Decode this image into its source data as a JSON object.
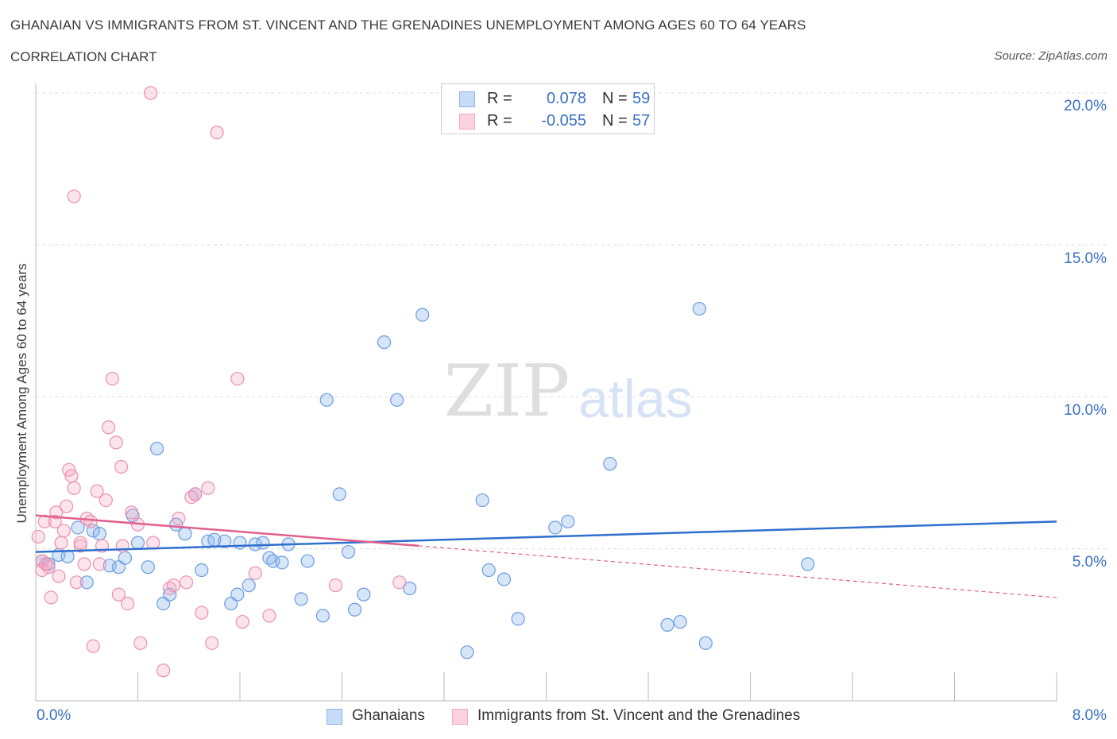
{
  "header": {
    "title": "GHANAIAN VS IMMIGRANTS FROM ST. VINCENT AND THE GRENADINES UNEMPLOYMENT AMONG AGES 60 TO 64 YEARS",
    "subtitle": "CORRELATION CHART",
    "source": "Source: ZipAtlas.com"
  },
  "stats_legend": {
    "rows": [
      {
        "r_label": "R =",
        "r_value": "0.078",
        "n_label": "N =",
        "n_value": "59",
        "color": "#8ab4ea"
      },
      {
        "r_label": "R =",
        "r_value": "-0.055",
        "n_label": "N =",
        "n_value": "57",
        "color": "#f4a6c0"
      }
    ]
  },
  "watermark": {
    "zip": "ZIP",
    "atlas": "atlas"
  },
  "chart_data": {
    "type": "scatter",
    "title": "GHANAIAN VS IMMIGRANTS FROM ST. VINCENT AND THE GRENADINES UNEMPLOYMENT AMONG AGES 60 TO 64 YEARS",
    "subtitle": "CORRELATION CHART",
    "xlabel": "",
    "ylabel": "Unemployment Among Ages 60 to 64 years",
    "xlim": [
      0,
      8
    ],
    "ylim": [
      0,
      20
    ],
    "x_tick_labels": [
      "0.0%",
      "8.0%"
    ],
    "y_tick_labels": [
      "5.0%",
      "10.0%",
      "15.0%",
      "20.0%"
    ],
    "y_ticks": [
      5,
      10,
      15,
      20
    ],
    "grid": true,
    "legend_position": "bottom-center",
    "series": [
      {
        "name": "Ghanaians",
        "color": "#8ab4ea",
        "line_color": "#2f6fce",
        "trend": {
          "x": [
            0,
            8
          ],
          "y": [
            4.9,
            5.9
          ],
          "dashed_after": null
        },
        "points": [
          [
            0.05,
            4.6
          ],
          [
            0.1,
            4.5
          ],
          [
            0.18,
            4.8
          ],
          [
            0.25,
            4.75
          ],
          [
            0.33,
            5.7
          ],
          [
            0.4,
            3.9
          ],
          [
            0.45,
            5.6
          ],
          [
            0.5,
            5.5
          ],
          [
            0.58,
            4.45
          ],
          [
            0.65,
            4.4
          ],
          [
            0.7,
            4.7
          ],
          [
            0.76,
            6.1
          ],
          [
            0.8,
            5.2
          ],
          [
            0.88,
            4.4
          ],
          [
            0.95,
            8.3
          ],
          [
            1.0,
            3.2
          ],
          [
            1.05,
            3.5
          ],
          [
            1.1,
            5.8
          ],
          [
            1.17,
            5.5
          ],
          [
            1.25,
            6.8
          ],
          [
            1.3,
            4.3
          ],
          [
            1.35,
            5.25
          ],
          [
            1.4,
            5.3
          ],
          [
            1.48,
            5.25
          ],
          [
            1.53,
            3.2
          ],
          [
            1.58,
            3.5
          ],
          [
            1.6,
            5.2
          ],
          [
            1.67,
            3.8
          ],
          [
            1.72,
            5.15
          ],
          [
            1.78,
            5.2
          ],
          [
            1.83,
            4.7
          ],
          [
            1.86,
            4.6
          ],
          [
            1.93,
            4.55
          ],
          [
            1.98,
            5.15
          ],
          [
            2.08,
            3.35
          ],
          [
            2.13,
            4.6
          ],
          [
            2.25,
            2.8
          ],
          [
            2.28,
            9.9
          ],
          [
            2.38,
            6.8
          ],
          [
            2.45,
            4.9
          ],
          [
            2.5,
            3.0
          ],
          [
            2.57,
            3.5
          ],
          [
            2.73,
            11.8
          ],
          [
            2.83,
            9.9
          ],
          [
            2.93,
            3.7
          ],
          [
            3.03,
            12.7
          ],
          [
            3.38,
            1.6
          ],
          [
            3.5,
            6.6
          ],
          [
            3.55,
            4.3
          ],
          [
            3.67,
            4.0
          ],
          [
            3.78,
            2.7
          ],
          [
            4.07,
            5.7
          ],
          [
            4.17,
            5.9
          ],
          [
            4.5,
            7.8
          ],
          [
            4.95,
            2.5
          ],
          [
            5.05,
            2.6
          ],
          [
            5.2,
            12.9
          ],
          [
            5.25,
            1.9
          ],
          [
            6.05,
            4.5
          ]
        ]
      },
      {
        "name": "Immigrants from St. Vincent and the Grenadines",
        "color": "#f4a6c0",
        "line_color": "#e0608c",
        "trend": {
          "x": [
            0,
            3.0,
            8
          ],
          "y": [
            6.1,
            5.1,
            3.4
          ],
          "dashed_after": 3.0
        },
        "points": [
          [
            0.02,
            5.4
          ],
          [
            0.05,
            4.6
          ],
          [
            0.07,
            5.9
          ],
          [
            0.1,
            4.4
          ],
          [
            0.12,
            3.4
          ],
          [
            0.15,
            5.9
          ],
          [
            0.16,
            6.2
          ],
          [
            0.18,
            4.1
          ],
          [
            0.2,
            5.2
          ],
          [
            0.22,
            5.6
          ],
          [
            0.24,
            6.4
          ],
          [
            0.26,
            7.6
          ],
          [
            0.28,
            7.4
          ],
          [
            0.3,
            7.0
          ],
          [
            0.32,
            3.9
          ],
          [
            0.35,
            5.1
          ],
          [
            0.38,
            4.5
          ],
          [
            0.4,
            6.0
          ],
          [
            0.43,
            5.9
          ],
          [
            0.45,
            1.8
          ],
          [
            0.48,
            6.9
          ],
          [
            0.5,
            4.5
          ],
          [
            0.52,
            5.1
          ],
          [
            0.55,
            6.6
          ],
          [
            0.57,
            9.0
          ],
          [
            0.6,
            10.6
          ],
          [
            0.63,
            8.5
          ],
          [
            0.65,
            3.5
          ],
          [
            0.67,
            7.7
          ],
          [
            0.68,
            5.1
          ],
          [
            0.72,
            3.2
          ],
          [
            0.75,
            6.2
          ],
          [
            0.8,
            5.8
          ],
          [
            0.82,
            1.9
          ],
          [
            0.9,
            20.0
          ],
          [
            0.92,
            5.2
          ],
          [
            1.0,
            1.0
          ],
          [
            1.05,
            3.7
          ],
          [
            1.08,
            3.8
          ],
          [
            1.12,
            6.0
          ],
          [
            1.18,
            3.9
          ],
          [
            1.22,
            6.7
          ],
          [
            1.25,
            6.8
          ],
          [
            1.3,
            2.9
          ],
          [
            1.35,
            7.0
          ],
          [
            1.38,
            1.9
          ],
          [
            1.42,
            18.7
          ],
          [
            1.58,
            10.6
          ],
          [
            1.62,
            2.6
          ],
          [
            1.72,
            4.2
          ],
          [
            1.83,
            2.8
          ],
          [
            2.35,
            3.8
          ],
          [
            2.85,
            3.9
          ],
          [
            0.3,
            16.6
          ],
          [
            0.05,
            4.3
          ],
          [
            0.08,
            4.5
          ],
          [
            0.35,
            5.2
          ]
        ]
      }
    ]
  },
  "axes": {
    "ylabel": "Unemployment Among Ages 60 to 64 years",
    "x_min_label": "0.0%",
    "x_max_label": "8.0%",
    "y_labels": [
      "20.0%",
      "15.0%",
      "10.0%",
      "5.0%"
    ]
  },
  "bottom_legend": [
    {
      "label": "Ghanaians",
      "color": "#8ab4ea"
    },
    {
      "label": "Immigrants from St. Vincent and the Grenadines",
      "color": "#f4a6c0"
    }
  ]
}
